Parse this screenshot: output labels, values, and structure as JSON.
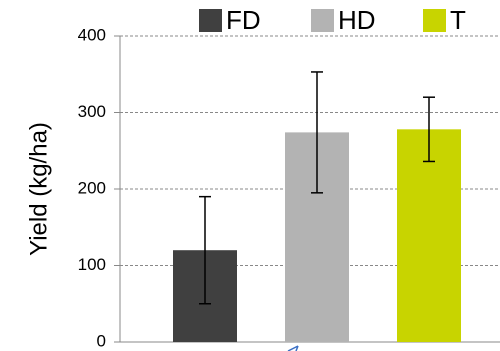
{
  "chart_data": {
    "type": "bar",
    "y_label": "Yield (kg/ha)",
    "categories": [
      "FD",
      "HD",
      "T"
    ],
    "values": [
      120,
      274,
      278
    ],
    "errors": [
      70,
      79,
      42
    ],
    "colors": [
      "#404040",
      "#b3b3b3",
      "#c8d400"
    ],
    "ylim": [
      0,
      400
    ],
    "yticks": [
      0,
      100,
      200,
      300,
      400
    ],
    "grid": true
  }
}
